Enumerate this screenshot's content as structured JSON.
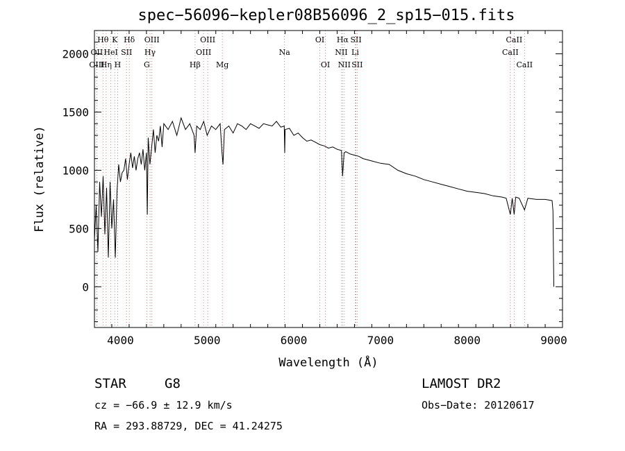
{
  "chart_data": {
    "type": "line",
    "title": "spec−56096−kepler08B56096_2_sp15−015.fits",
    "xlabel": "Wavelength (Å)",
    "ylabel": "Flux (relative)",
    "xlim": [
      3700,
      9100
    ],
    "ylim": [
      -350,
      2200
    ],
    "xticks": [
      4000,
      5000,
      6000,
      7000,
      8000,
      9000
    ],
    "yticks": [
      0,
      500,
      1000,
      1500,
      2000
    ],
    "grid": false,
    "series": [
      {
        "x": [
          3700,
          3720,
          3740,
          3760,
          3780,
          3800,
          3820,
          3840,
          3860,
          3880,
          3900,
          3920,
          3940,
          3960,
          3980,
          4000,
          4020,
          4040,
          4060,
          4080,
          4100,
          4120,
          4140,
          4160,
          4180,
          4200,
          4220,
          4240,
          4260,
          4280,
          4300,
          4310,
          4320,
          4340,
          4360,
          4380,
          4400,
          4420,
          4440,
          4460,
          4480,
          4500,
          4550,
          4600,
          4650,
          4700,
          4750,
          4800,
          4850,
          4861,
          4880,
          4920,
          4960,
          5000,
          5050,
          5100,
          5150,
          5172,
          5183,
          5200,
          5250,
          5300,
          5350,
          5400,
          5450,
          5500,
          5550,
          5600,
          5650,
          5700,
          5750,
          5800,
          5850,
          5890,
          5895,
          5900,
          5950,
          6000,
          6050,
          6100,
          6150,
          6200,
          6250,
          6300,
          6350,
          6400,
          6450,
          6500,
          6550,
          6563,
          6580,
          6600,
          6650,
          6700,
          6750,
          6800,
          6900,
          7000,
          7100,
          7200,
          7300,
          7400,
          7500,
          7600,
          7700,
          7800,
          7900,
          8000,
          8100,
          8200,
          8300,
          8400,
          8450,
          8498,
          8520,
          8542,
          8560,
          8600,
          8662,
          8700,
          8800,
          8900,
          8980,
          8990,
          9000
        ],
        "values": [
          400,
          700,
          300,
          900,
          600,
          950,
          450,
          850,
          250,
          900,
          500,
          750,
          250,
          820,
          1050,
          900,
          980,
          1000,
          1100,
          920,
          1050,
          1150,
          1020,
          1120,
          1000,
          1100,
          1150,
          1050,
          1180,
          1000,
          1150,
          620,
          1280,
          1050,
          1200,
          1350,
          1150,
          1300,
          1250,
          1380,
          1200,
          1400,
          1350,
          1420,
          1300,
          1450,
          1350,
          1400,
          1300,
          1150,
          1380,
          1350,
          1420,
          1300,
          1380,
          1350,
          1400,
          1150,
          1050,
          1350,
          1380,
          1320,
          1400,
          1380,
          1350,
          1400,
          1380,
          1360,
          1400,
          1390,
          1380,
          1420,
          1370,
          1380,
          1150,
          1350,
          1360,
          1300,
          1320,
          1280,
          1250,
          1260,
          1240,
          1220,
          1210,
          1190,
          1200,
          1180,
          1170,
          950,
          1150,
          1160,
          1140,
          1130,
          1120,
          1100,
          1080,
          1060,
          1050,
          1000,
          970,
          950,
          920,
          900,
          880,
          860,
          840,
          820,
          810,
          800,
          780,
          770,
          760,
          620,
          760,
          620,
          770,
          760,
          660,
          760,
          750,
          750,
          740,
          650,
          0
        ]
      }
    ],
    "lines": [
      {
        "label": "Hθ",
        "x": 3798,
        "row": 0
      },
      {
        "label": "OII",
        "x": 3727,
        "row": 1
      },
      {
        "label": "OIII",
        "x": 3727,
        "row": 2
      },
      {
        "label": "K",
        "x": 3934,
        "row": 0
      },
      {
        "label": "H",
        "x": 3968,
        "row": 2
      },
      {
        "label": "Hη",
        "x": 3835,
        "row": 2
      },
      {
        "label": "HeI",
        "x": 3889,
        "row": 1
      },
      {
        "label": "SII",
        "x": 4070,
        "row": 1
      },
      {
        "label": "Hδ",
        "x": 4102,
        "row": 0
      },
      {
        "label": "OIII",
        "x": 4363,
        "row": 0
      },
      {
        "label": "Hγ",
        "x": 4341,
        "row": 1
      },
      {
        "label": "G",
        "x": 4304,
        "row": 2
      },
      {
        "label": "Hβ",
        "x": 4861,
        "row": 2
      },
      {
        "label": "OIII",
        "x": 5007,
        "row": 0
      },
      {
        "label": "OIII",
        "x": 4959,
        "row": 1
      },
      {
        "label": "Mg",
        "x": 5175,
        "row": 2
      },
      {
        "label": "Na",
        "x": 5893,
        "row": 1
      },
      {
        "label": "OI",
        "x": 6300,
        "row": 0
      },
      {
        "label": "OI",
        "x": 6364,
        "row": 2
      },
      {
        "label": "Hα",
        "x": 6563,
        "row": 0
      },
      {
        "label": "NII",
        "x": 6548,
        "row": 1
      },
      {
        "label": "NII",
        "x": 6583,
        "row": 2
      },
      {
        "label": "SII",
        "x": 6717,
        "row": 0
      },
      {
        "label": "Li",
        "x": 6708,
        "row": 1
      },
      {
        "label": "SII",
        "x": 6731,
        "row": 2
      },
      {
        "label": "CaII",
        "x": 8542,
        "row": 0
      },
      {
        "label": "CaII",
        "x": 8498,
        "row": 1
      },
      {
        "label": "CaII",
        "x": 8662,
        "row": 2
      }
    ]
  },
  "info": {
    "class_label": "STAR",
    "subclass": "G8",
    "survey": "LAMOST DR2",
    "redshift": "cz = −66.9 ± 12.9 km/s",
    "obs_date": "Obs−Date: 20120617",
    "coords": "RA = 293.88729, DEC =  41.24275"
  }
}
